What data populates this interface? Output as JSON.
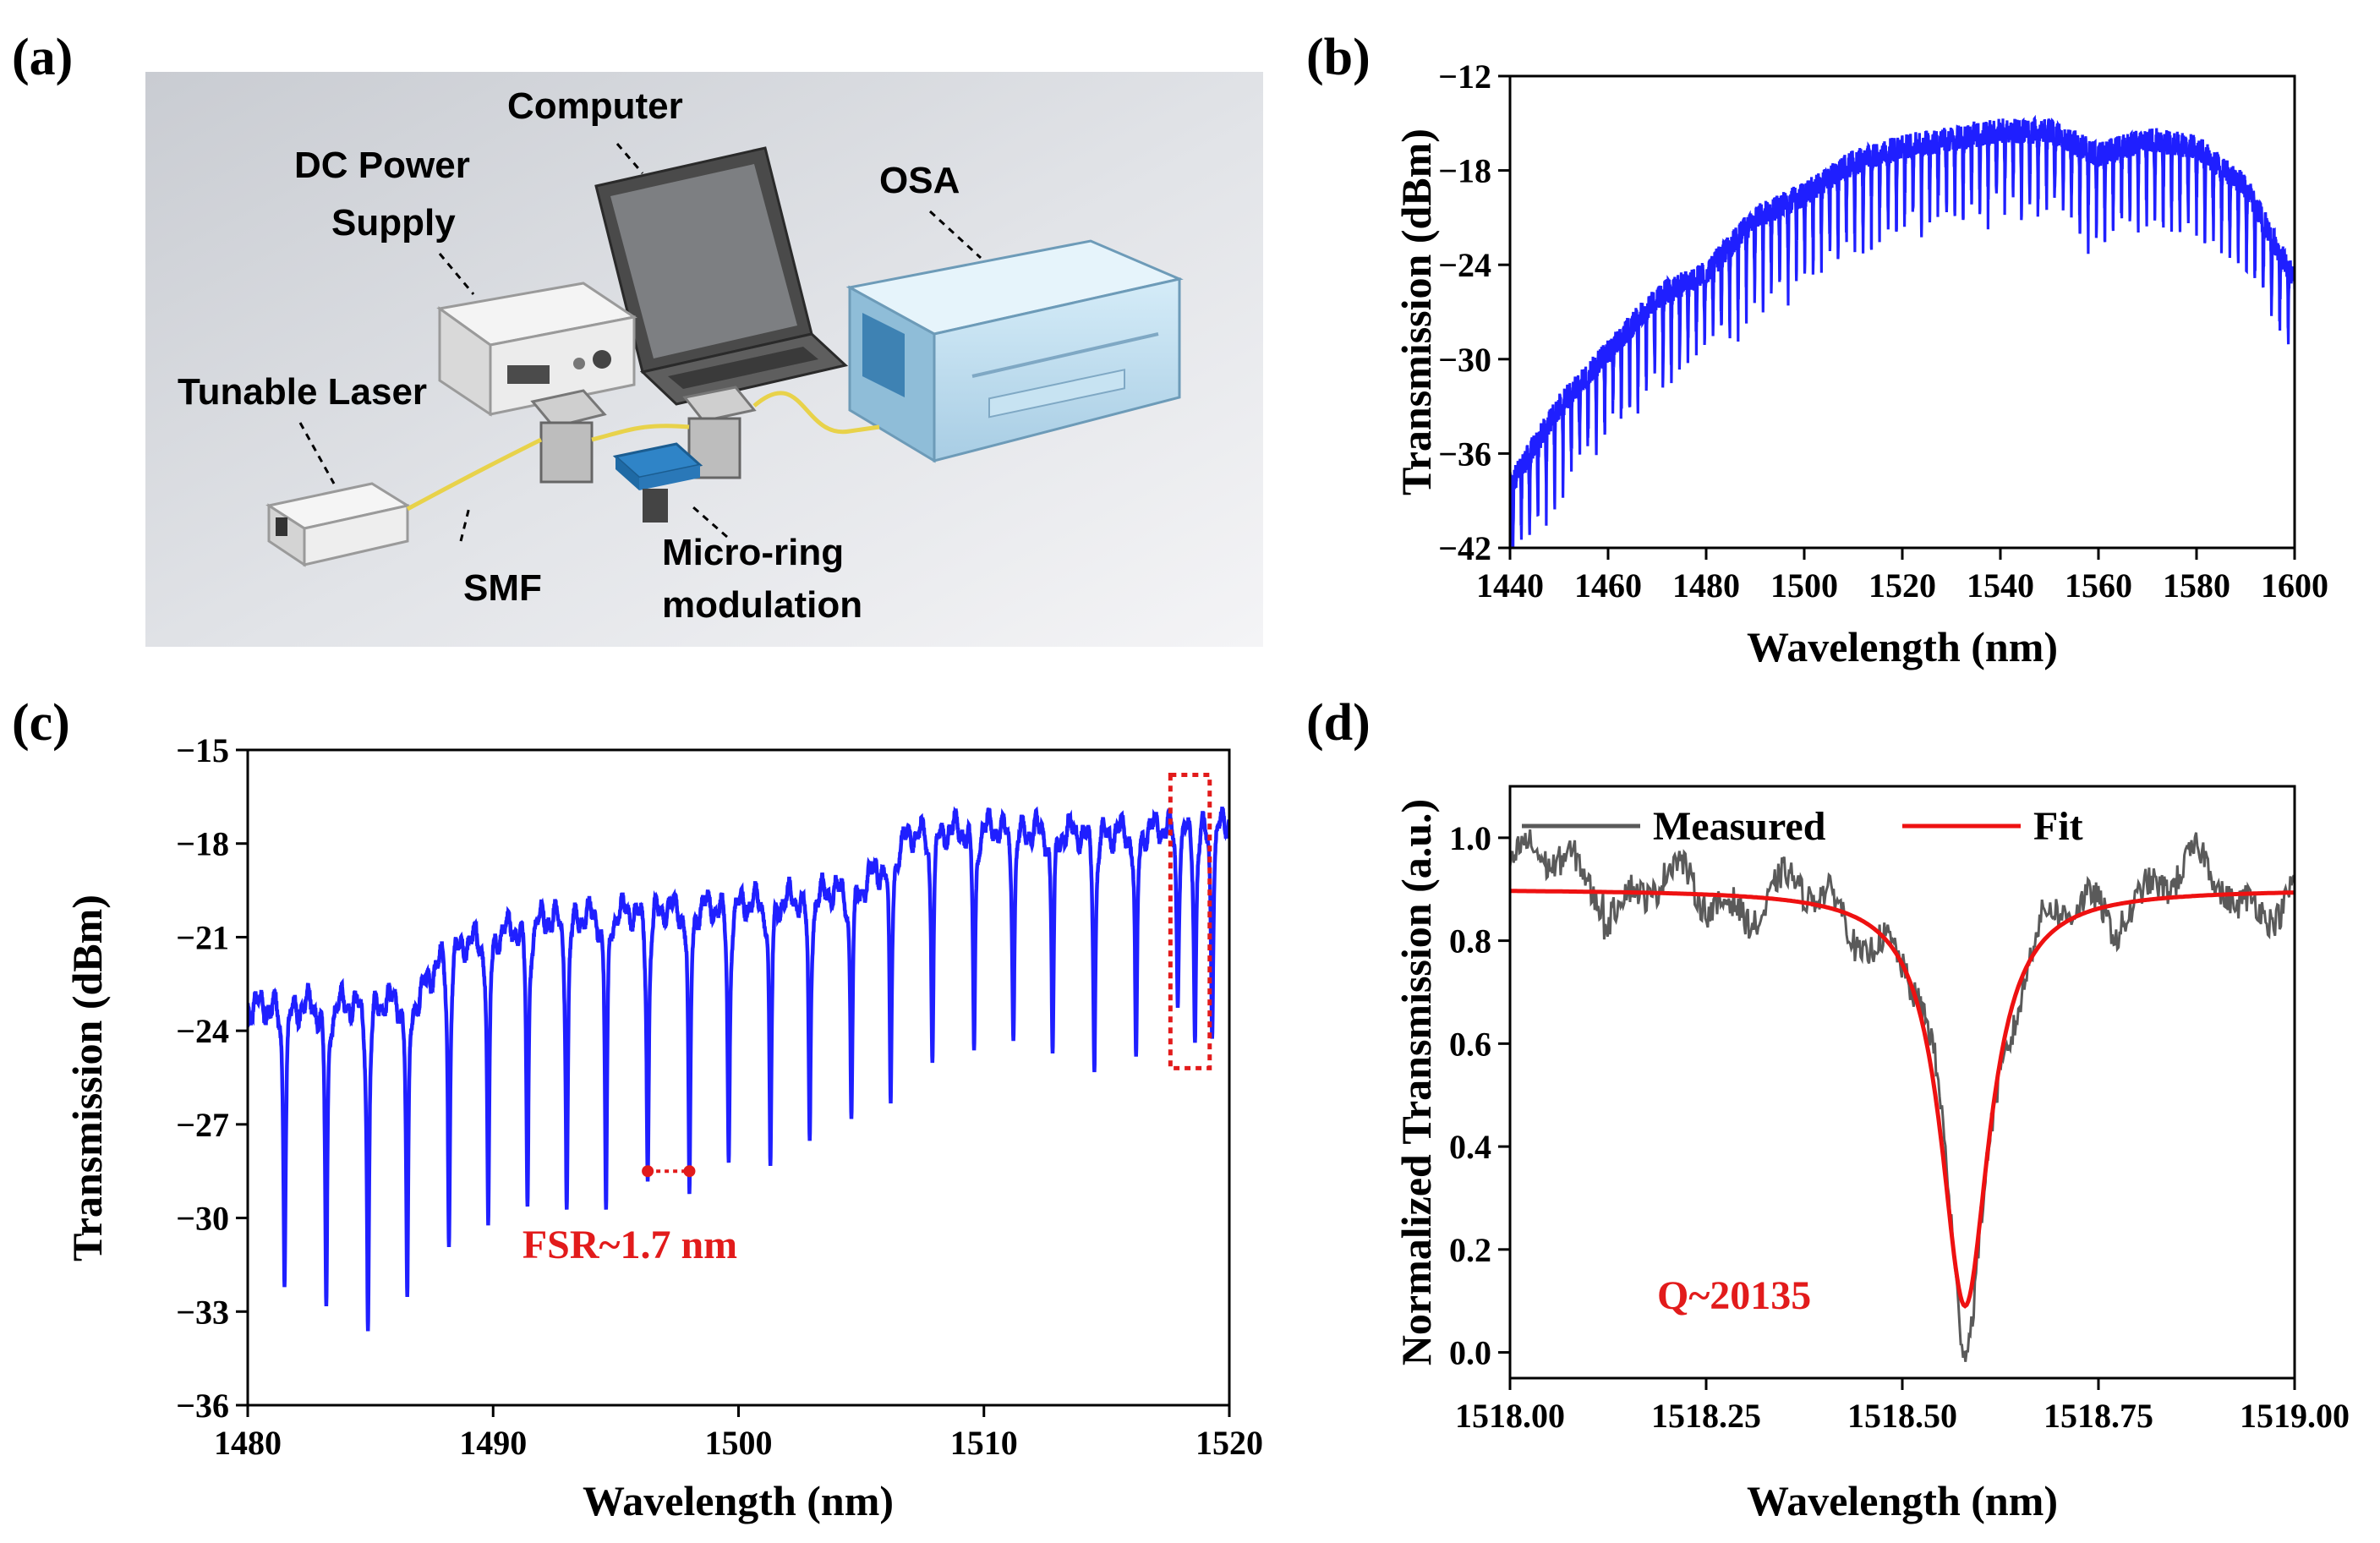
{
  "colors": {
    "spectrum": "#1f1fff",
    "measured": "#5a5a5a",
    "fit": "#ee1111",
    "annotation": "#e21b1b"
  },
  "panel_a": {
    "label": "(a)",
    "components": {
      "computer": "Computer",
      "dc_power_line1": "DC Power",
      "dc_power_line2": "Supply",
      "osa": "OSA",
      "tunable_laser": "Tunable Laser",
      "smf": "SMF",
      "micro_ring_line1": "Micro-ring",
      "micro_ring_line2": "modulation"
    }
  },
  "chart_data": [
    {
      "id": "b",
      "label": "(b)",
      "type": "line",
      "title": "",
      "xlabel": "Wavelength (nm)",
      "ylabel": "Transmission (dBm)",
      "xlim": [
        1440,
        1600
      ],
      "ylim": [
        -42,
        -12
      ],
      "xticks": [
        1440,
        1460,
        1480,
        1500,
        1520,
        1540,
        1560,
        1580,
        1600
      ],
      "yticks": [
        -42,
        -36,
        -30,
        -24,
        -18,
        -12
      ],
      "ytick_labels": [
        "-42",
        "-36",
        "-30",
        "-24",
        "-18",
        "-12"
      ],
      "envelope_x": [
        1440,
        1450,
        1460,
        1470,
        1480,
        1490,
        1500,
        1510,
        1520,
        1530,
        1540,
        1550,
        1560,
        1570,
        1580,
        1590,
        1600
      ],
      "envelope_y": [
        -38,
        -33,
        -29.5,
        -26,
        -24.5,
        -21,
        -19.5,
        -17.5,
        -16.5,
        -16,
        -15.5,
        -15.5,
        -17,
        -16,
        -16.5,
        -19,
        -25
      ],
      "resonance_spacing_nm": 1.7,
      "resonance_depth_db": 4.5,
      "series": [
        {
          "name": "Transmission",
          "color": "#1f1fff"
        }
      ]
    },
    {
      "id": "c",
      "label": "(c)",
      "type": "line",
      "title": "",
      "xlabel": "Wavelength (nm)",
      "ylabel": "Transmission (dBm)",
      "xlim": [
        1480,
        1520
      ],
      "ylim": [
        -36,
        -15
      ],
      "xticks": [
        1480,
        1490,
        1500,
        1510,
        1520
      ],
      "yticks": [
        -36,
        -33,
        -30,
        -27,
        -24,
        -21,
        -18,
        -15
      ],
      "ytick_labels": [
        "-36",
        "-33",
        "-30",
        "-27",
        "-24",
        "-21",
        "-18",
        "-15"
      ],
      "baseline_x": [
        1480,
        1485,
        1487,
        1488,
        1492,
        1497,
        1502,
        1505,
        1507,
        1510,
        1515,
        1518,
        1520
      ],
      "baseline_y": [
        -23.2,
        -23,
        -22.8,
        -21.3,
        -20.3,
        -20,
        -19.7,
        -19.3,
        -17.6,
        -17.4,
        -17.6,
        -17.3,
        -17.2
      ],
      "dips_x": [
        1481.5,
        1483.2,
        1484.9,
        1486.5,
        1488.2,
        1489.8,
        1491.4,
        1493.0,
        1494.6,
        1496.3,
        1498.0,
        1499.6,
        1501.3,
        1502.9,
        1504.6,
        1506.2,
        1507.9,
        1509.6,
        1511.2,
        1512.8,
        1514.5,
        1516.2,
        1517.9,
        1518.6,
        1519.3
      ],
      "dips_y": [
        -32.2,
        -32.8,
        -33.6,
        -32.5,
        -30.9,
        -30.2,
        -29.6,
        -29.7,
        -29.7,
        -28.8,
        -29.2,
        -28.2,
        -28.3,
        -27.5,
        -26.8,
        -26.3,
        -25.0,
        -24.6,
        -24.3,
        -24.7,
        -25.3,
        -24.8,
        -23.2,
        -24.3,
        -24.2
      ],
      "annotation": {
        "text": "FSR~1.7 nm",
        "x1": 1496.3,
        "x2": 1498.0,
        "y": -28.5
      },
      "highlight_box": {
        "x1": 1517.6,
        "x2": 1519.2,
        "y1": -25.2,
        "y2": -15.8
      },
      "series": [
        {
          "name": "Transmission",
          "color": "#1f1fff"
        }
      ]
    },
    {
      "id": "d",
      "label": "(d)",
      "type": "line",
      "title": "",
      "xlabel": "Wavelength (nm)",
      "ylabel": "Normalized Transmission (a.u.)",
      "xlim": [
        1518.0,
        1519.0
      ],
      "ylim": [
        -0.05,
        1.1
      ],
      "xticks": [
        1518.0,
        1518.25,
        1518.5,
        1518.75,
        1519.0
      ],
      "xtick_labels": [
        "1518.00",
        "1518.25",
        "1518.50",
        "1518.75",
        "1519.00"
      ],
      "yticks": [
        0.0,
        0.2,
        0.4,
        0.6,
        0.8,
        1.0
      ],
      "ytick_labels": [
        "0.0",
        "0.2",
        "0.4",
        "0.6",
        "0.8",
        "1.0"
      ],
      "resonance_center_nm": 1518.58,
      "fit_baseline": 0.9,
      "fit_min": 0.09,
      "fit_fwhm_nm": 0.075,
      "legend_position": "top",
      "annotation": "Q~20135",
      "series": [
        {
          "name": "Measured",
          "color": "#5a5a5a"
        },
        {
          "name": "Fit",
          "color": "#ee1111"
        }
      ]
    }
  ]
}
